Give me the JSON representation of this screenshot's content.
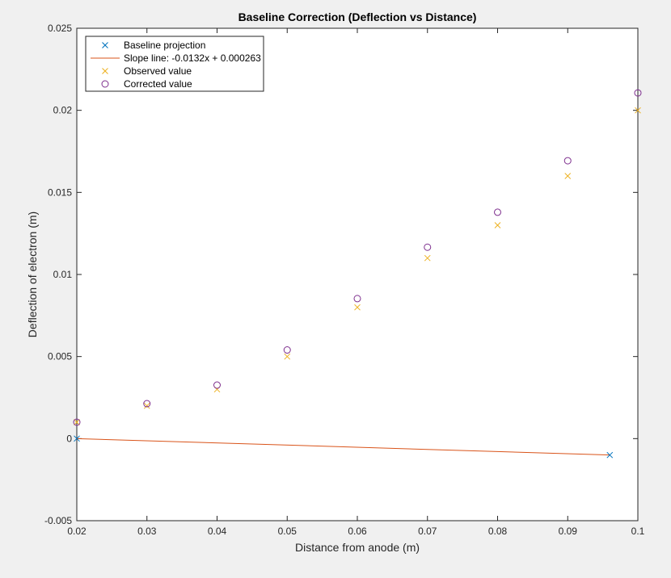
{
  "chart_data": {
    "type": "scatter",
    "title": "Baseline Correction (Deflection vs Distance)",
    "xlabel": "Distance from anode (m)",
    "ylabel": "Deflection of electron (m)",
    "xlim": [
      0.02,
      0.1
    ],
    "ylim": [
      -0.005,
      0.025
    ],
    "xticks": [
      0.02,
      0.03,
      0.04,
      0.05,
      0.06,
      0.07,
      0.08,
      0.09,
      0.1
    ],
    "xtick_labels": [
      "0.02",
      "0.03",
      "0.04",
      "0.05",
      "0.06",
      "0.07",
      "0.08",
      "0.09",
      "0.1"
    ],
    "yticks": [
      -0.005,
      0,
      0.005,
      0.01,
      0.015,
      0.02,
      0.025
    ],
    "ytick_labels": [
      "-0.005",
      "0",
      "0.005",
      "0.01",
      "0.015",
      "0.02",
      "0.025"
    ],
    "grid": false,
    "legend_position": "top-left",
    "series": [
      {
        "name": "Baseline projection",
        "marker": "x",
        "color": "#0072BD",
        "x": [
          0.02,
          0.096
        ],
        "y": [
          0.0,
          -0.001
        ]
      },
      {
        "name": "Slope line: -0.0132x + 0.000263",
        "marker": "line",
        "color": "#D95319",
        "x": [
          0.02,
          0.096
        ],
        "y": [
          0.0,
          -0.001
        ]
      },
      {
        "name": "Observed value",
        "marker": "x",
        "color": "#EDB120",
        "x": [
          0.02,
          0.03,
          0.04,
          0.05,
          0.06,
          0.07,
          0.08,
          0.09,
          0.1
        ],
        "y": [
          0.001,
          0.002,
          0.003,
          0.005,
          0.008,
          0.011,
          0.013,
          0.016,
          0.02
        ]
      },
      {
        "name": "Corrected value",
        "marker": "o",
        "color": "#7E2F8E",
        "x": [
          0.02,
          0.03,
          0.04,
          0.05,
          0.06,
          0.07,
          0.08,
          0.09,
          0.1
        ],
        "y": [
          0.001,
          0.00213,
          0.00326,
          0.0054,
          0.00853,
          0.01166,
          0.01379,
          0.01693,
          0.02106
        ]
      }
    ]
  }
}
